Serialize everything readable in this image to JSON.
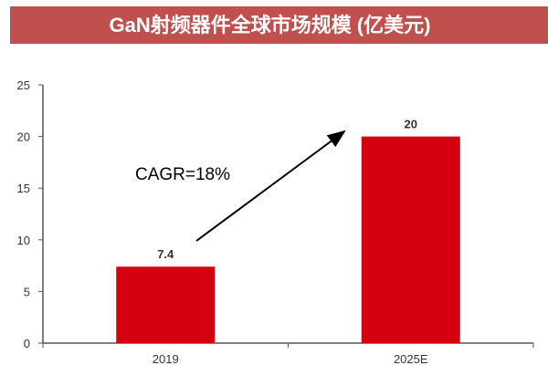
{
  "chart_data": {
    "type": "bar",
    "title": "GaN射频器件全球市场规模 (亿美元)",
    "categories": [
      "2019",
      "2025E"
    ],
    "values": [
      7.4,
      20
    ],
    "data_labels": [
      "7.4",
      "20"
    ],
    "xlabel": "",
    "ylabel": "",
    "ylim": [
      0,
      25
    ],
    "yticks": [
      "0",
      "5",
      "10",
      "15",
      "20",
      "25"
    ],
    "grid": false,
    "annotation": "CAGR=18%",
    "bar_color": "#d50010",
    "title_bg": "#c0504d"
  }
}
